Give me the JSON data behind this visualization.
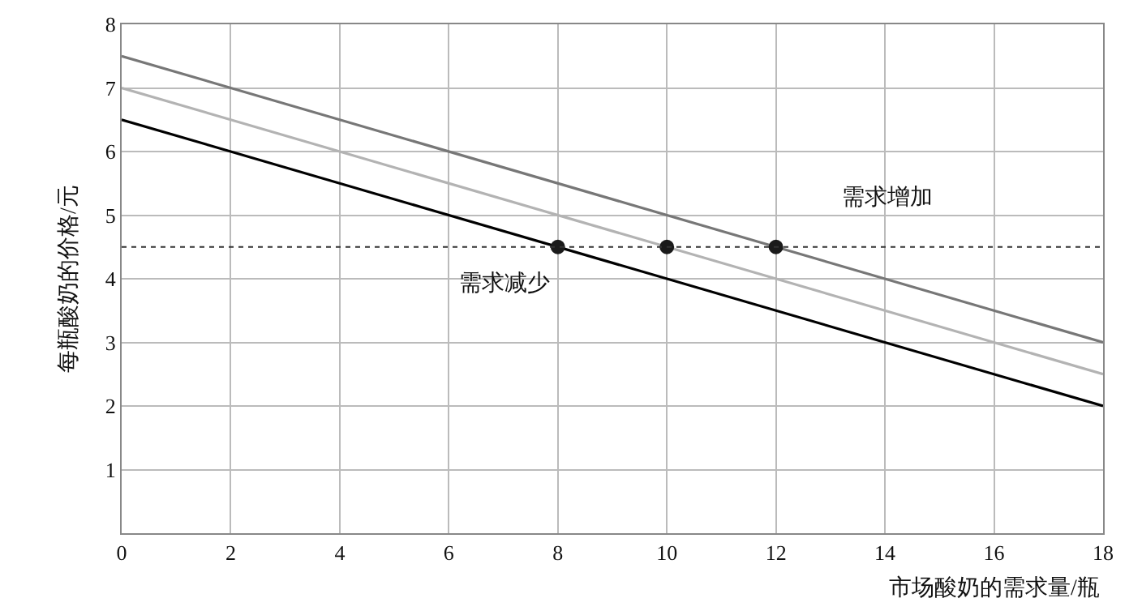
{
  "chart_data": {
    "type": "line",
    "xlabel": "市场酸奶的需求量/瓶",
    "ylabel": "每瓶酸奶的价格/元",
    "xlim": [
      0,
      18
    ],
    "xticks": [
      0,
      2,
      4,
      6,
      8,
      10,
      12,
      14,
      16,
      18
    ],
    "ylim": [
      0,
      8
    ],
    "yticks": [
      1,
      2,
      3,
      4,
      5,
      6,
      7,
      8
    ],
    "grid": true,
    "series": [
      {
        "color": "#777777",
        "x": [
          0,
          18
        ],
        "values": [
          7.5,
          3
        ]
      },
      {
        "color": "#b3b3b3",
        "x": [
          0,
          18
        ],
        "values": [
          7,
          2.5
        ]
      },
      {
        "color": "#000000",
        "x": [
          0,
          18
        ],
        "values": [
          6.5,
          2
        ]
      },
      {
        "type": "scatter",
        "marker": "circle",
        "color": "#1a1a1a",
        "x": [
          8,
          10,
          12
        ],
        "values": [
          4.5,
          4.5,
          4.5
        ]
      }
    ],
    "ref_lines": [
      {
        "axis": "y",
        "value": 4.5,
        "color": "#333333",
        "line_style": "dotted"
      }
    ],
    "annotations": [
      "需求增加",
      "需求减少"
    ]
  }
}
